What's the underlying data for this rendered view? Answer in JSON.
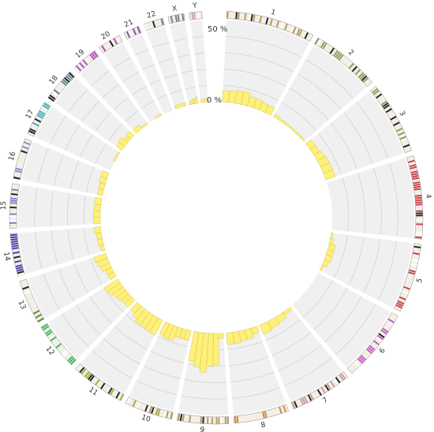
{
  "chart_data": {
    "type": "circular",
    "scale_labels": {
      "max": "50 %",
      "min": "0 %"
    },
    "ylim": [
      0,
      50
    ],
    "track_color": "#f0f0f0",
    "grid_color": "#d2d2d2",
    "bar_color": "#fff07a",
    "bar_stroke": "#c9b84a",
    "chromosomes": [
      {
        "name": "1",
        "color": "#b49a62",
        "values": [
          7,
          7,
          8,
          8,
          6,
          6,
          5,
          5
        ]
      },
      {
        "name": "2",
        "color": "#8aa05a",
        "values": [
          2,
          1,
          1,
          1,
          1,
          1,
          1,
          1
        ]
      },
      {
        "name": "3",
        "color": "#8aa05a",
        "values": [
          4,
          4,
          5,
          6,
          6,
          6
        ]
      },
      {
        "name": "4",
        "color": "#c9434a",
        "values": [
          0,
          0,
          0,
          0,
          0,
          0
        ]
      },
      {
        "name": "5",
        "color": "#c9434a",
        "values": [
          1,
          2,
          4,
          4,
          4,
          3,
          1
        ]
      },
      {
        "name": "6",
        "color": "#c35ac9",
        "values": [
          0,
          0,
          0,
          0,
          0,
          0
        ]
      },
      {
        "name": "7",
        "color": "#c89aa0",
        "values": [
          2,
          4,
          5,
          6
        ]
      },
      {
        "name": "8",
        "color": "#c98a40",
        "values": [
          4,
          6,
          6,
          7,
          7
        ]
      },
      {
        "name": "9",
        "color": "#b8a060",
        "values": [
          3,
          19,
          20,
          24,
          21,
          18
        ]
      },
      {
        "name": "10",
        "color": "#a6a050",
        "values": [
          6,
          6,
          6,
          9,
          9,
          8
        ]
      },
      {
        "name": "11",
        "color": "#a0b040",
        "values": [
          10,
          10,
          9,
          10,
          8,
          6
        ]
      },
      {
        "name": "12",
        "color": "#3cb860",
        "values": [
          6,
          6,
          7,
          8,
          9,
          10
        ]
      },
      {
        "name": "13",
        "color": "#5a8a30",
        "values": [
          4,
          4,
          6,
          7,
          8
        ]
      },
      {
        "name": "14",
        "color": "#4a40b0",
        "values": [
          2,
          3,
          3,
          4
        ]
      },
      {
        "name": "15",
        "color": "#8080d0",
        "values": [
          4,
          4,
          4,
          4
        ]
      },
      {
        "name": "16",
        "color": "#8090d0",
        "values": [
          3,
          3,
          4,
          4
        ]
      },
      {
        "name": "17",
        "color": "#40b0c0",
        "values": [
          0,
          0,
          1,
          1
        ]
      },
      {
        "name": "18",
        "color": "#5a8a90",
        "values": [
          4,
          5,
          3,
          4
        ]
      },
      {
        "name": "19",
        "color": "#b050c0",
        "values": [
          3,
          1
        ]
      },
      {
        "name": "20",
        "color": "#b050c0",
        "values": [
          0,
          1
        ]
      },
      {
        "name": "21",
        "color": "#8a50b0",
        "values": [
          0
        ]
      },
      {
        "name": "22",
        "color": "#707080",
        "values": [
          2
        ]
      },
      {
        "name": "X",
        "color": "#808080",
        "values": [
          1,
          2,
          3,
          3,
          4
        ]
      },
      {
        "name": "Y",
        "color": "#c8a0b0",
        "values": [
          2,
          2
        ]
      }
    ]
  }
}
